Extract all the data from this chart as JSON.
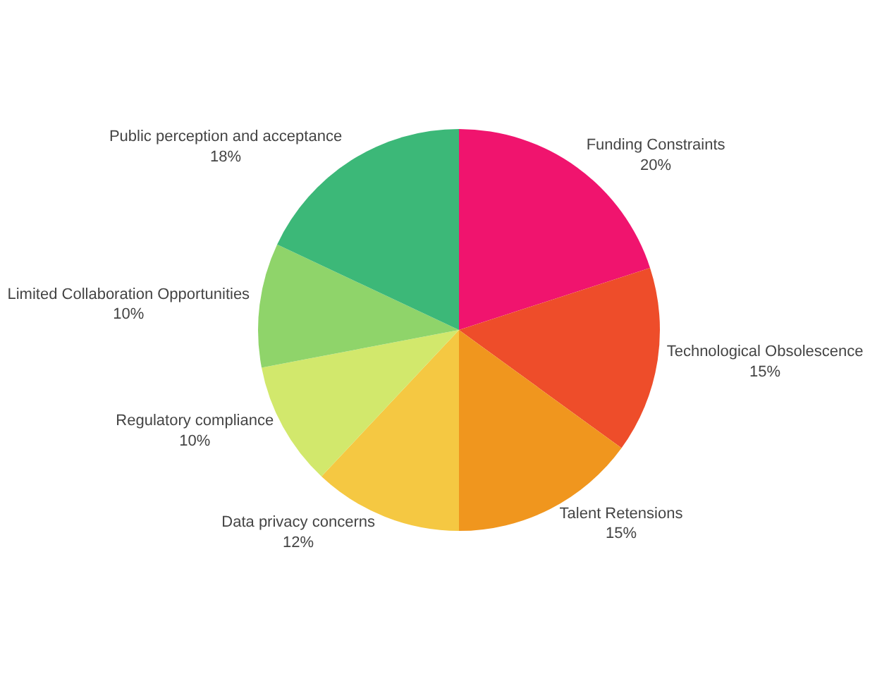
{
  "chart_data": {
    "type": "pie",
    "categories": [
      "Funding Constraints",
      "Technological Obsolescence",
      "Talent Retensions",
      "Data privacy concerns",
      "Regulatory compliance",
      "Limited Collaboration Opportunities",
      "Public perception and acceptance"
    ],
    "values": [
      20,
      15,
      15,
      12,
      10,
      10,
      18
    ],
    "value_labels": [
      "20%",
      "15%",
      "15%",
      "12%",
      "10%",
      "10%",
      "18%"
    ],
    "colors": [
      "#f0146e",
      "#ee4d2a",
      "#f0961e",
      "#f5c842",
      "#d2e86c",
      "#8fd46a",
      "#3cb878"
    ],
    "legend": false
  }
}
